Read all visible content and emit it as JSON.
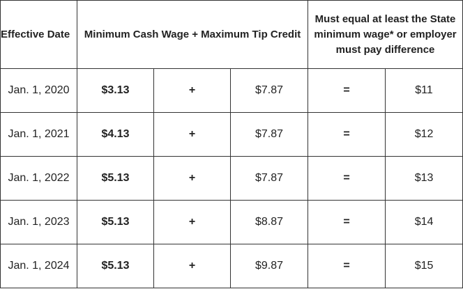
{
  "headers": {
    "effective_date": "Effective Date",
    "wage_tip": "Minimum Cash Wage + Maximum Tip Credit",
    "state_min": "Must equal at least the State minimum wage* or employer must pay difference"
  },
  "operators": {
    "plus": "+",
    "equals": "="
  },
  "rows": [
    {
      "date": "Jan. 1, 2020",
      "cash_wage": "$3.13",
      "tip_credit": "$7.87",
      "state_min": "$11"
    },
    {
      "date": "Jan. 1, 2021",
      "cash_wage": "$4.13",
      "tip_credit": "$7.87",
      "state_min": "$12"
    },
    {
      "date": "Jan. 1, 2022",
      "cash_wage": "$5.13",
      "tip_credit": "$7.87",
      "state_min": "$13"
    },
    {
      "date": "Jan. 1, 2023",
      "cash_wage": "$5.13",
      "tip_credit": "$8.87",
      "state_min": "$14"
    },
    {
      "date": "Jan. 1, 2024",
      "cash_wage": "$5.13",
      "tip_credit": "$9.87",
      "state_min": "$15"
    }
  ]
}
